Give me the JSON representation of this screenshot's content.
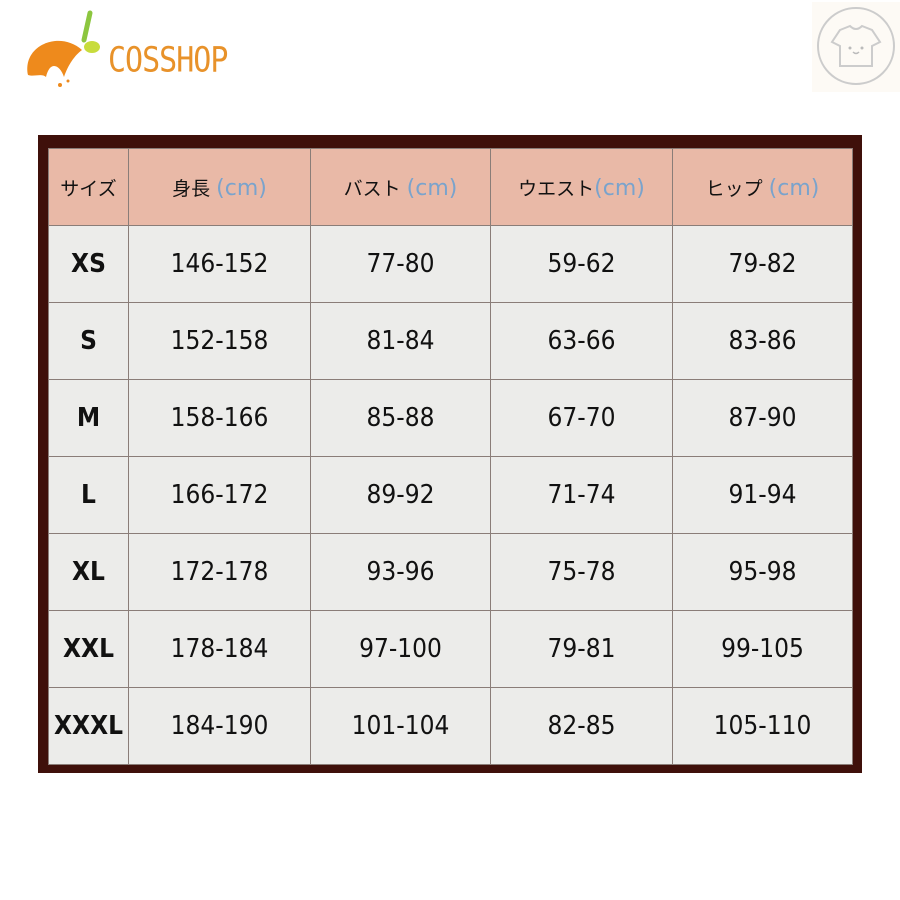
{
  "brand": {
    "name": "COSSHOP",
    "colors": {
      "orange": "#e8922a",
      "green": "#8cc63f"
    }
  },
  "badge": {
    "icon": "t-shirt-face-icon"
  },
  "table": {
    "headers": [
      {
        "label": "サイズ",
        "unit": ""
      },
      {
        "label": "身長",
        "unit": "(cm)"
      },
      {
        "label": "バスト",
        "unit": "(cm)"
      },
      {
        "label": "ウエスト",
        "unit": "(cm)"
      },
      {
        "label": "ヒップ",
        "unit": "(cm)"
      }
    ],
    "rows": [
      [
        "XS",
        "146-152",
        "77-80",
        "59-62",
        "79-82"
      ],
      [
        "S",
        "152-158",
        "81-84",
        "63-66",
        "83-86"
      ],
      [
        "M",
        "158-166",
        "85-88",
        "67-70",
        "87-90"
      ],
      [
        "L",
        "166-172",
        "89-92",
        "71-74",
        "91-94"
      ],
      [
        "XL",
        "172-178",
        "93-96",
        "75-78",
        "95-98"
      ],
      [
        "XXL",
        "178-184",
        "97-100",
        "79-81",
        "99-105"
      ],
      [
        "XXXL",
        "184-190",
        "101-104",
        "82-85",
        "105-110"
      ]
    ],
    "colors": {
      "frame": "#3f100a",
      "header": "#e9b9a7",
      "cell": "#ececea",
      "unit": "#7aa3cc"
    }
  }
}
